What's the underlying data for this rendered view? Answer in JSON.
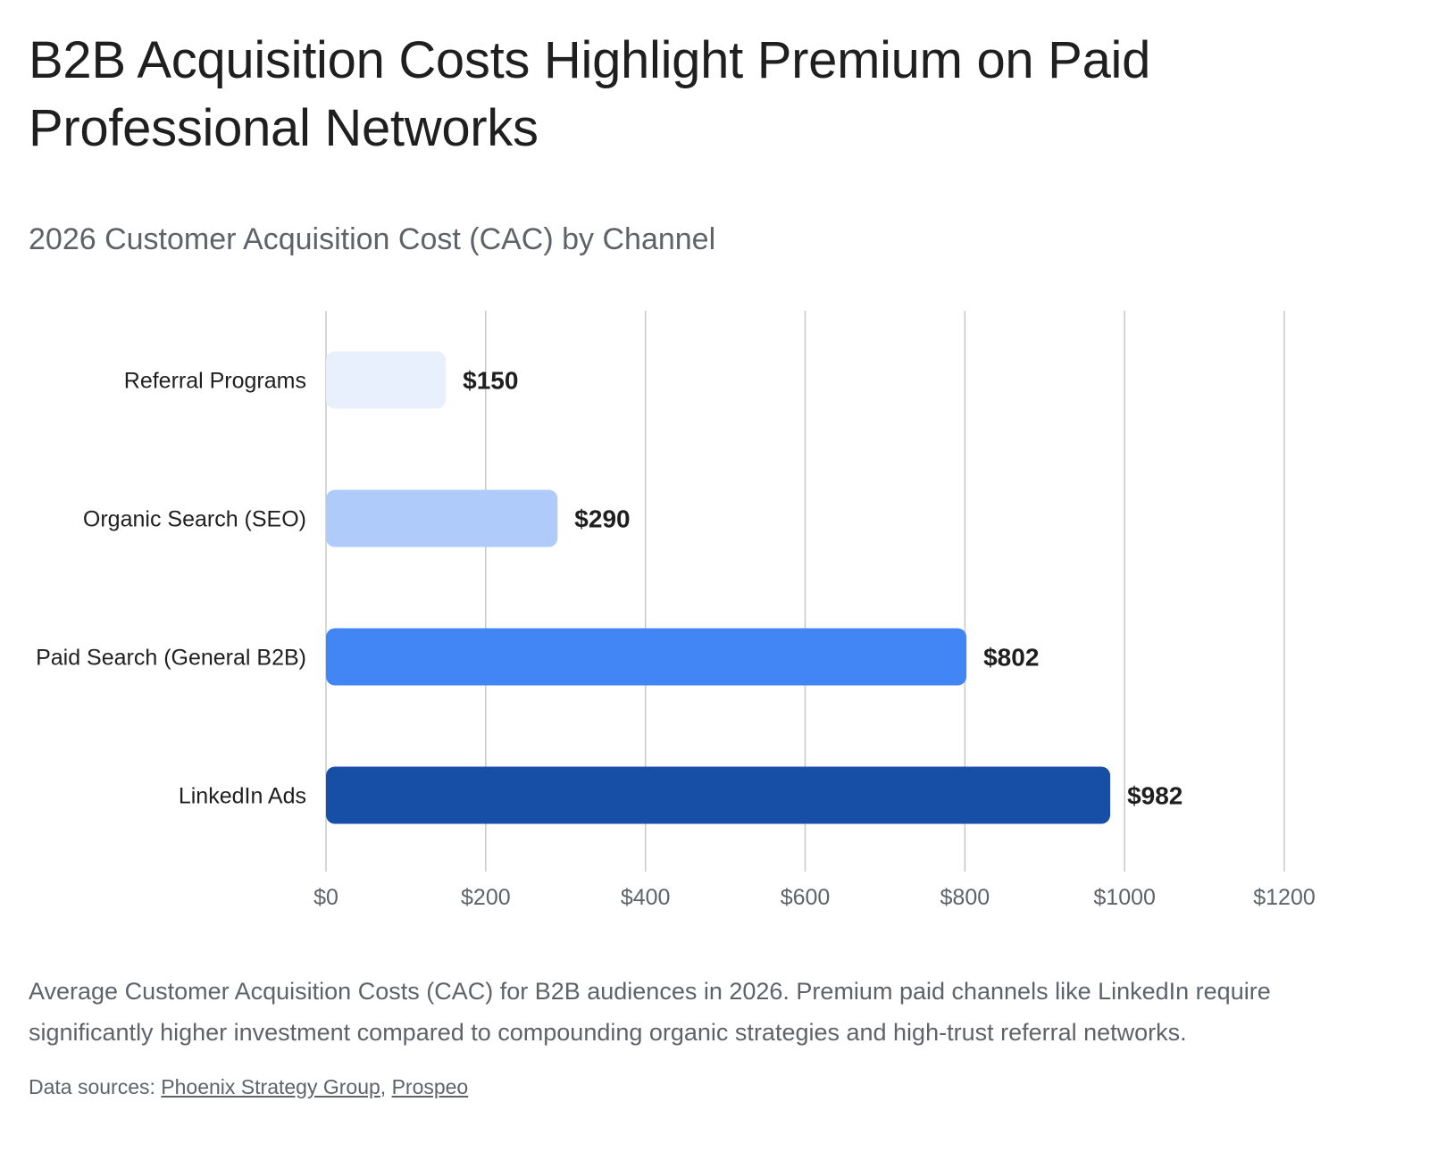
{
  "title": "B2B Acquisition Costs Highlight Premium on Paid Professional Networks",
  "subtitle": "2026 Customer Acquisition Cost (CAC) by Channel",
  "chart_data": {
    "type": "bar",
    "orientation": "horizontal",
    "categories": [
      "Referral Programs",
      "Organic Search (SEO)",
      "Paid Search (General B2B)",
      "LinkedIn Ads"
    ],
    "values": [
      150,
      290,
      802,
      982
    ],
    "value_labels": [
      "$150",
      "$290",
      "$802",
      "$982"
    ],
    "bar_colors": [
      "#e8f0fe",
      "#aecbfa",
      "#4285f4",
      "#174ea6"
    ],
    "xlim": [
      0,
      1200
    ],
    "x_ticks": [
      0,
      200,
      400,
      600,
      800,
      1000,
      1200
    ],
    "x_tick_labels": [
      "$0",
      "$200",
      "$400",
      "$600",
      "$800",
      "$1000",
      "$1200"
    ],
    "grid": "vertical",
    "legend": "none",
    "xlabel": "",
    "ylabel": ""
  },
  "caption": "Average Customer Acquisition Costs (CAC) for B2B audiences in 2026. Premium paid channels like LinkedIn require significantly higher investment compared to compounding organic strategies and high-trust referral networks.",
  "sources": {
    "prefix": "Data sources: ",
    "separator": ", ",
    "links": [
      "Phoenix Strategy Group",
      "Prospeo"
    ]
  },
  "colors": {
    "grid": "#c8c8c8",
    "axis_text": "#5f6368",
    "category_text": "#1f1f1f",
    "value_text": "#1f1f1f"
  }
}
